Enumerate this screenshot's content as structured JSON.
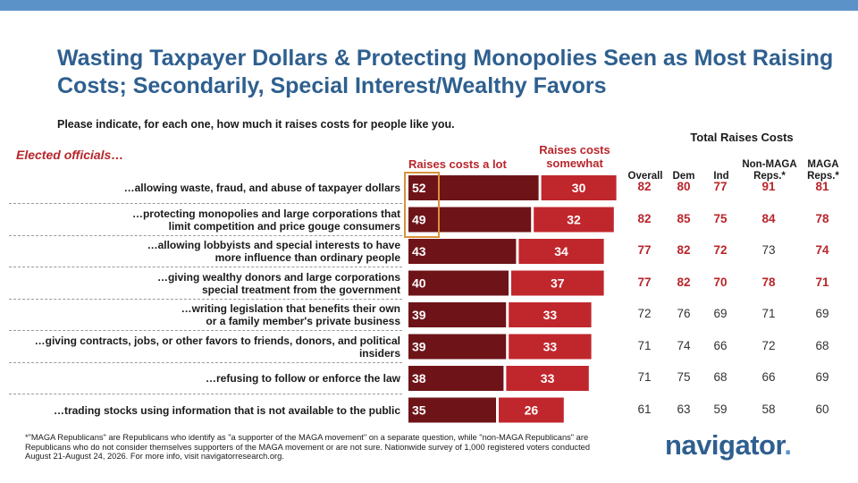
{
  "title": "Wasting Taxpayer Dollars & Protecting Monopolies Seen as Most Raising Costs; Secondarily, Special Interest/Wealthy Favors",
  "subtitle": "Please indicate, for each one, how much it raises costs for people like you.",
  "row_header": "Elected officials…",
  "total_header": "Total Raises Costs",
  "columns": [
    "Overall",
    "Dem",
    "Ind",
    "Non-MAGA Reps.*",
    "MAGA Reps.*"
  ],
  "colors": {
    "title": "#2e5f8f",
    "lot": "#6e1419",
    "somewhat": "#c0272d",
    "accent_text": "#b8262b",
    "highlight": "#d9923b"
  },
  "chart_data": {
    "type": "bar",
    "stacked": true,
    "orientation": "horizontal",
    "categories": [
      [
        "…allowing waste, fraud, and abuse of taxpayer dollars"
      ],
      [
        "…protecting monopolies and large corporations that",
        "limit competition and price gouge consumers"
      ],
      [
        "…allowing lobbyists and special interests to have",
        "more influence than ordinary people"
      ],
      [
        "…giving wealthy donors and large corporations",
        "special treatment from the government"
      ],
      [
        "…writing legislation that benefits their own",
        "or a family member's private business"
      ],
      [
        "…giving contracts, jobs, or other favors to friends, donors, and political insiders"
      ],
      [
        "…refusing to follow or enforce the law"
      ],
      [
        "…trading stocks using information that is not available to the public"
      ]
    ],
    "series": [
      {
        "name": "Raises costs a lot",
        "values": [
          52,
          49,
          43,
          40,
          39,
          39,
          38,
          35
        ]
      },
      {
        "name": "Raises costs somewhat",
        "values": [
          30,
          32,
          34,
          37,
          33,
          33,
          33,
          26
        ]
      }
    ],
    "table": [
      [
        82,
        80,
        77,
        91,
        81
      ],
      [
        82,
        85,
        75,
        84,
        78
      ],
      [
        77,
        82,
        72,
        73,
        74
      ],
      [
        77,
        82,
        70,
        78,
        71
      ],
      [
        72,
        76,
        69,
        71,
        69
      ],
      [
        71,
        74,
        66,
        72,
        68
      ],
      [
        71,
        75,
        68,
        66,
        69
      ],
      [
        61,
        63,
        59,
        58,
        60
      ]
    ],
    "table_bold": [
      [
        true,
        true,
        true,
        true,
        true
      ],
      [
        true,
        true,
        true,
        true,
        true
      ],
      [
        true,
        true,
        true,
        false,
        true
      ],
      [
        true,
        true,
        true,
        true,
        true
      ],
      [
        false,
        false,
        false,
        false,
        false
      ],
      [
        false,
        false,
        false,
        false,
        false
      ],
      [
        false,
        false,
        false,
        false,
        false
      ],
      [
        false,
        false,
        false,
        false,
        false
      ]
    ]
  },
  "footnote": "*\"MAGA Republicans\" are Republicans who identify as \"a supporter of the MAGA movement\" on a separate question, while \"non-MAGA Republicans\" are Republicans who do not consider themselves supporters of the MAGA movement or are not sure. Nationwide survey of 1,000 registered voters conducted August 21-August 24, 2026. For more info, visit navigatorresearch.org.",
  "logo": {
    "text": "navigator",
    "dot": "."
  }
}
